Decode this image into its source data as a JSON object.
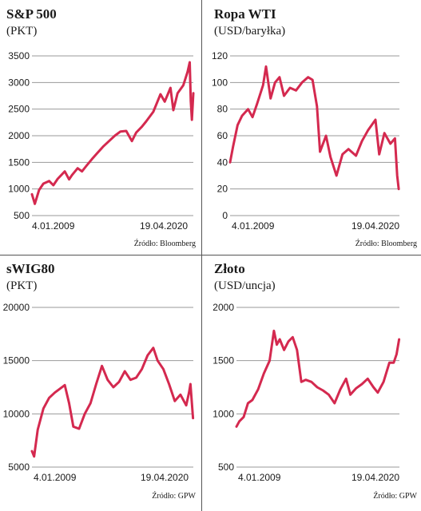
{
  "chart_data": [
    {
      "type": "line",
      "title": "S&P 500",
      "unit": "(PKT)",
      "source": "Źródło: Bloomberg",
      "ylim": [
        500,
        3500
      ],
      "yticks": [
        "500",
        "1000",
        "1500",
        "2000",
        "2500",
        "3000",
        "3500"
      ],
      "xticks": [
        "4.01.2009",
        "19.04.2020"
      ],
      "xlim": [
        2009.0,
        2020.3
      ],
      "color": "#d4294f",
      "grid": "horizontal",
      "x": [
        2009.0,
        2009.2,
        2009.5,
        2009.8,
        2010.2,
        2010.5,
        2010.8,
        2011.3,
        2011.6,
        2011.8,
        2012.2,
        2012.5,
        2012.8,
        2013.2,
        2013.6,
        2014.0,
        2014.4,
        2014.8,
        2015.2,
        2015.6,
        2016.0,
        2016.3,
        2016.7,
        2017.0,
        2017.5,
        2018.0,
        2018.3,
        2018.7,
        2018.9,
        2019.2,
        2019.6,
        2019.9,
        2020.05,
        2020.12,
        2020.2,
        2020.3
      ],
      "y": [
        900,
        720,
        980,
        1100,
        1150,
        1070,
        1190,
        1330,
        1180,
        1260,
        1390,
        1330,
        1430,
        1560,
        1680,
        1800,
        1900,
        2000,
        2080,
        2090,
        1900,
        2060,
        2170,
        2270,
        2450,
        2780,
        2640,
        2900,
        2480,
        2800,
        2950,
        3200,
        3380,
        2650,
        2300,
        2800
      ]
    },
    {
      "type": "line",
      "title": "Ropa WTI",
      "unit": "(USD/baryłka)",
      "source": "Źródło: Bloomberg",
      "ylim": [
        0,
        120
      ],
      "yticks": [
        "0",
        "20",
        "40",
        "60",
        "80",
        "100",
        "120"
      ],
      "xticks": [
        "4.01.2009",
        "19.04.2020"
      ],
      "xlim": [
        2009.0,
        2020.3
      ],
      "color": "#d4294f",
      "grid": "horizontal",
      "x": [
        2009.0,
        2009.2,
        2009.5,
        2009.8,
        2010.2,
        2010.5,
        2010.8,
        2011.2,
        2011.4,
        2011.7,
        2012.0,
        2012.3,
        2012.6,
        2013.0,
        2013.4,
        2013.8,
        2014.2,
        2014.5,
        2014.8,
        2015.0,
        2015.4,
        2015.7,
        2016.1,
        2016.5,
        2016.9,
        2017.4,
        2017.8,
        2018.2,
        2018.7,
        2018.95,
        2019.3,
        2019.7,
        2020.0,
        2020.15,
        2020.25
      ],
      "y": [
        40,
        52,
        68,
        75,
        80,
        74,
        84,
        98,
        112,
        88,
        100,
        104,
        90,
        96,
        94,
        100,
        104,
        102,
        82,
        48,
        60,
        44,
        30,
        46,
        50,
        45,
        56,
        64,
        72,
        46,
        62,
        54,
        58,
        30,
        20
      ]
    },
    {
      "type": "line",
      "title": "sWIG80",
      "unit": "(PKT)",
      "source": "Źródło: GPW",
      "ylim": [
        5000,
        20000
      ],
      "yticks": [
        "5000",
        "10000",
        "15000",
        "20000"
      ],
      "xticks": [
        "4.01.2009",
        "19.04.2020"
      ],
      "xlim": [
        2009.0,
        2020.3
      ],
      "color": "#d4294f",
      "grid": "horizontal",
      "x": [
        2009.0,
        2009.15,
        2009.4,
        2009.8,
        2010.2,
        2010.6,
        2011.0,
        2011.3,
        2011.6,
        2011.9,
        2012.3,
        2012.7,
        2013.1,
        2013.5,
        2013.9,
        2014.3,
        2014.7,
        2015.1,
        2015.5,
        2015.9,
        2016.3,
        2016.7,
        2017.1,
        2017.5,
        2017.8,
        2018.2,
        2018.6,
        2019.0,
        2019.4,
        2019.8,
        2020.0,
        2020.1,
        2020.2,
        2020.28
      ],
      "y": [
        6500,
        6000,
        8500,
        10500,
        11500,
        12000,
        12400,
        12700,
        11000,
        8800,
        8600,
        10000,
        11000,
        12800,
        14500,
        13200,
        12500,
        13000,
        14000,
        13200,
        13400,
        14200,
        15500,
        16200,
        15000,
        14200,
        12800,
        11200,
        11800,
        10800,
        12000,
        12800,
        11000,
        9600
      ]
    },
    {
      "type": "line",
      "title": "Złoto",
      "unit": "(USD/uncja)",
      "source": "Źródło: GPW",
      "ylim": [
        500,
        2000
      ],
      "yticks": [
        "500",
        "1000",
        "1500",
        "2000"
      ],
      "xticks": [
        "4.01.2009",
        "19.04.2020"
      ],
      "xlim": [
        2009.0,
        2020.3
      ],
      "color": "#d4294f",
      "grid": "horizontal",
      "x": [
        2009.0,
        2009.2,
        2009.5,
        2009.8,
        2010.1,
        2010.5,
        2010.9,
        2011.3,
        2011.6,
        2011.8,
        2012.0,
        2012.3,
        2012.6,
        2012.9,
        2013.2,
        2013.5,
        2013.8,
        2014.2,
        2014.6,
        2015.0,
        2015.4,
        2015.8,
        2016.2,
        2016.6,
        2016.9,
        2017.3,
        2017.7,
        2018.1,
        2018.5,
        2018.8,
        2019.2,
        2019.6,
        2019.9,
        2020.1,
        2020.28
      ],
      "y": [
        880,
        930,
        970,
        1100,
        1130,
        1230,
        1380,
        1500,
        1780,
        1650,
        1700,
        1600,
        1680,
        1720,
        1600,
        1300,
        1320,
        1300,
        1250,
        1220,
        1180,
        1100,
        1230,
        1330,
        1180,
        1240,
        1280,
        1330,
        1250,
        1200,
        1300,
        1480,
        1480,
        1560,
        1700
      ]
    }
  ]
}
